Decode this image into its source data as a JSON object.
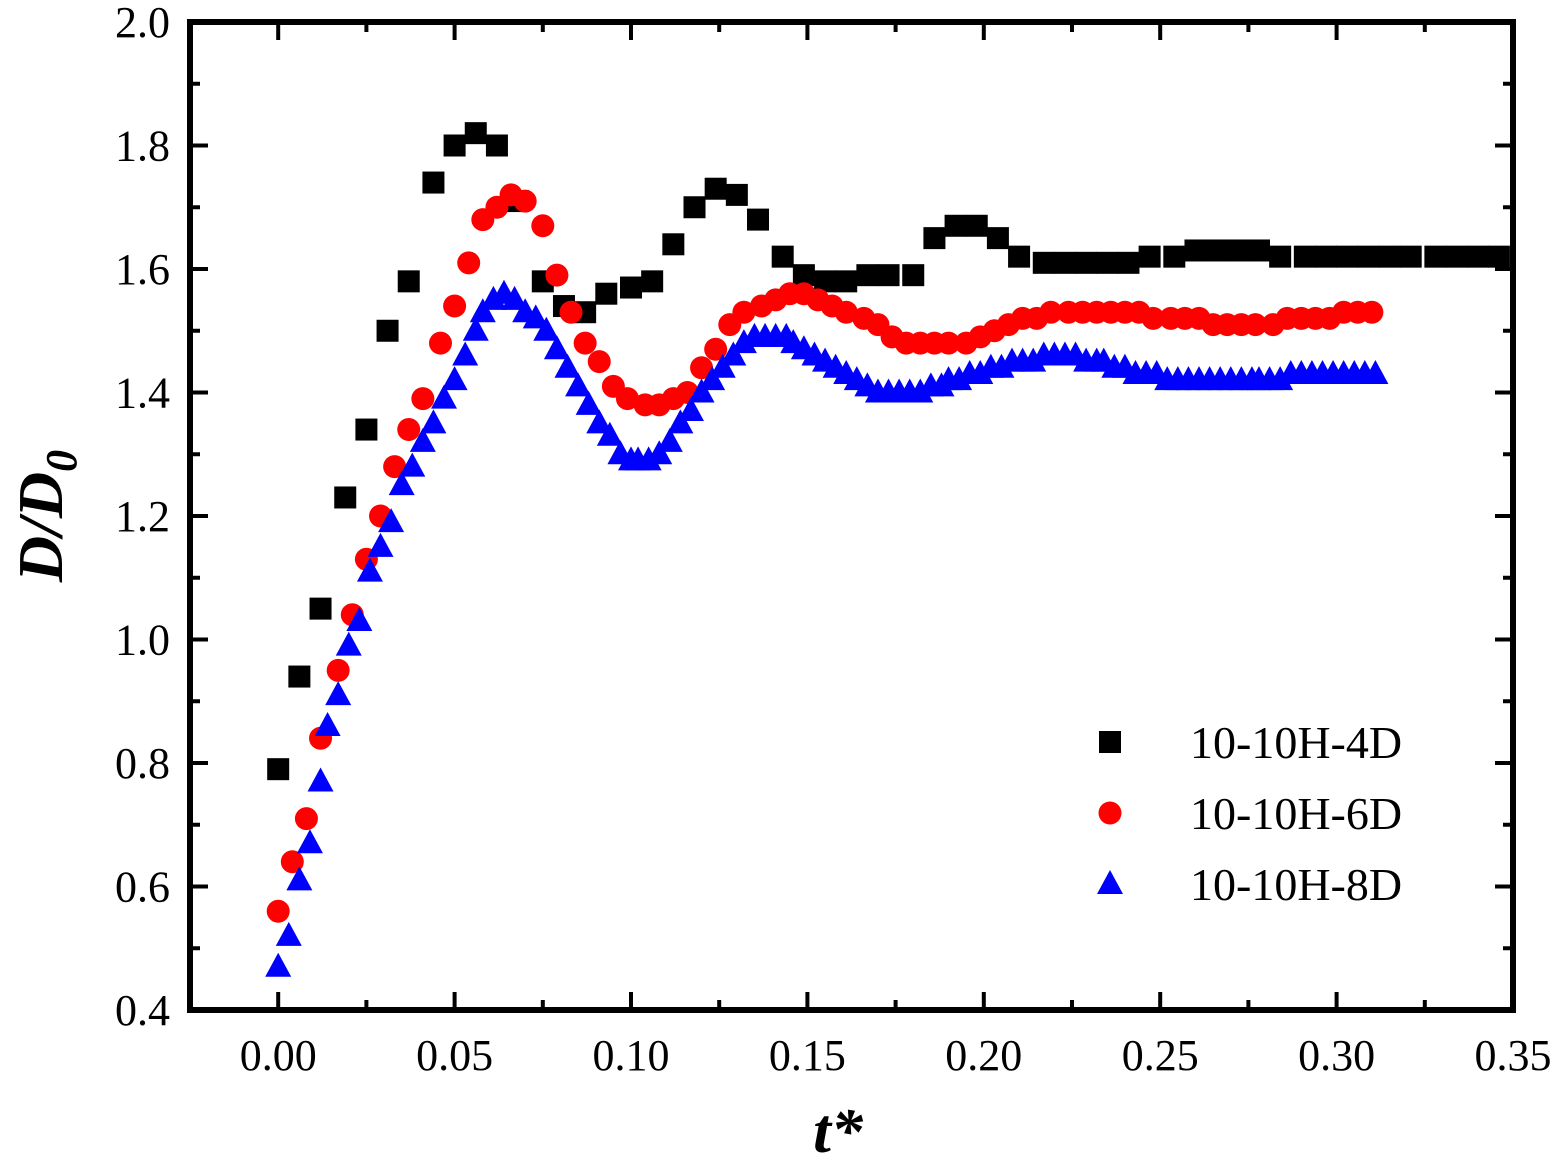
{
  "chart_data": {
    "type": "scatter",
    "xlabel": "t*",
    "ylabel_main": "D/D",
    "ylabel_sub": "0",
    "xlim": [
      -0.025,
      0.35
    ],
    "ylim": [
      0.4,
      2.0
    ],
    "xticks": [
      "0.00",
      "0.05",
      "0.10",
      "0.15",
      "0.20",
      "0.25",
      "0.30",
      "0.35"
    ],
    "xtick_values": [
      0.0,
      0.05,
      0.1,
      0.15,
      0.2,
      0.25,
      0.3,
      0.35
    ],
    "yticks": [
      "0.4",
      "0.6",
      "0.8",
      "1.0",
      "1.2",
      "1.4",
      "1.6",
      "1.8",
      "2.0"
    ],
    "ytick_values": [
      0.4,
      0.6,
      0.8,
      1.0,
      1.2,
      1.4,
      1.6,
      1.8,
      2.0
    ],
    "grid": false,
    "legend_position": "bottom-right",
    "series": [
      {
        "name": "10-10H-4D",
        "marker": "square",
        "color": "#000000",
        "x": [
          0.0,
          0.006,
          0.012,
          0.019,
          0.025,
          0.031,
          0.037,
          0.044,
          0.05,
          0.056,
          0.062,
          0.068,
          0.075,
          0.081,
          0.087,
          0.093,
          0.1,
          0.106,
          0.112,
          0.118,
          0.124,
          0.13,
          0.136,
          0.143,
          0.149,
          0.155,
          0.161,
          0.167,
          0.173,
          0.18,
          0.186,
          0.192,
          0.198,
          0.204,
          0.21,
          0.217,
          0.223,
          0.229,
          0.235,
          0.241,
          0.247,
          0.254,
          0.26,
          0.266,
          0.272,
          0.278,
          0.284,
          0.291,
          0.297,
          0.303,
          0.309,
          0.315,
          0.321,
          0.328,
          0.334,
          0.34,
          0.346
        ],
        "y": [
          0.79,
          0.94,
          1.05,
          1.23,
          1.34,
          1.5,
          1.58,
          1.74,
          1.8,
          1.82,
          1.8,
          1.71,
          1.58,
          1.54,
          1.53,
          1.56,
          1.57,
          1.58,
          1.64,
          1.7,
          1.73,
          1.72,
          1.68,
          1.62,
          1.59,
          1.58,
          1.58,
          1.59,
          1.59,
          1.59,
          1.65,
          1.67,
          1.67,
          1.65,
          1.62,
          1.61,
          1.61,
          1.61,
          1.61,
          1.61,
          1.62,
          1.62,
          1.63,
          1.63,
          1.63,
          1.63,
          1.62,
          1.62,
          1.62,
          1.62,
          1.62,
          1.62,
          1.62,
          1.62,
          1.62,
          1.62,
          1.62
        ]
      },
      {
        "name": "10-10H-6D",
        "marker": "circle",
        "color": "#ff0000",
        "x": [
          0.0,
          0.004,
          0.008,
          0.012,
          0.017,
          0.021,
          0.025,
          0.029,
          0.033,
          0.037,
          0.041,
          0.046,
          0.05,
          0.054,
          0.058,
          0.062,
          0.066,
          0.07,
          0.075,
          0.079,
          0.083,
          0.087,
          0.091,
          0.095,
          0.099,
          0.104,
          0.108,
          0.112,
          0.116,
          0.12,
          0.124,
          0.128,
          0.132,
          0.137,
          0.141,
          0.145,
          0.149,
          0.153,
          0.157,
          0.161,
          0.166,
          0.17,
          0.174,
          0.178,
          0.182,
          0.186,
          0.19,
          0.195,
          0.199,
          0.203,
          0.207,
          0.211,
          0.215,
          0.219,
          0.224,
          0.228,
          0.232,
          0.236,
          0.24,
          0.244,
          0.248,
          0.253,
          0.257,
          0.261,
          0.265,
          0.269,
          0.273,
          0.277,
          0.282,
          0.286,
          0.29,
          0.294,
          0.298,
          0.302,
          0.306,
          0.31
        ],
        "y": [
          0.56,
          0.64,
          0.71,
          0.84,
          0.95,
          1.04,
          1.13,
          1.2,
          1.28,
          1.34,
          1.39,
          1.48,
          1.54,
          1.61,
          1.68,
          1.7,
          1.72,
          1.71,
          1.67,
          1.59,
          1.53,
          1.48,
          1.45,
          1.41,
          1.39,
          1.38,
          1.38,
          1.39,
          1.4,
          1.44,
          1.47,
          1.51,
          1.53,
          1.54,
          1.55,
          1.56,
          1.56,
          1.55,
          1.54,
          1.53,
          1.52,
          1.51,
          1.49,
          1.48,
          1.48,
          1.48,
          1.48,
          1.48,
          1.49,
          1.5,
          1.51,
          1.52,
          1.52,
          1.53,
          1.53,
          1.53,
          1.53,
          1.53,
          1.53,
          1.53,
          1.52,
          1.52,
          1.52,
          1.52,
          1.51,
          1.51,
          1.51,
          1.51,
          1.51,
          1.52,
          1.52,
          1.52,
          1.52,
          1.53,
          1.53,
          1.53
        ]
      },
      {
        "name": "10-10H-8D",
        "marker": "triangle",
        "color": "#0000ff",
        "x": [
          0.0,
          0.003,
          0.006,
          0.009,
          0.012,
          0.014,
          0.017,
          0.02,
          0.023,
          0.026,
          0.029,
          0.032,
          0.035,
          0.038,
          0.041,
          0.044,
          0.047,
          0.05,
          0.053,
          0.056,
          0.058,
          0.061,
          0.064,
          0.067,
          0.07,
          0.073,
          0.076,
          0.079,
          0.082,
          0.085,
          0.088,
          0.091,
          0.094,
          0.097,
          0.1,
          0.102,
          0.105,
          0.108,
          0.111,
          0.114,
          0.117,
          0.12,
          0.123,
          0.126,
          0.129,
          0.132,
          0.135,
          0.138,
          0.141,
          0.144,
          0.146,
          0.149,
          0.152,
          0.155,
          0.158,
          0.161,
          0.164,
          0.167,
          0.17,
          0.173,
          0.176,
          0.179,
          0.182,
          0.185,
          0.188,
          0.19,
          0.193,
          0.196,
          0.199,
          0.202,
          0.205,
          0.208,
          0.211,
          0.214,
          0.217,
          0.22,
          0.223,
          0.226,
          0.229,
          0.232,
          0.234,
          0.237,
          0.24,
          0.243,
          0.246,
          0.249,
          0.252,
          0.255,
          0.258,
          0.261,
          0.264,
          0.267,
          0.27,
          0.273,
          0.276,
          0.278,
          0.281,
          0.284,
          0.287,
          0.29,
          0.293,
          0.296,
          0.299,
          0.302,
          0.305,
          0.308,
          0.311
        ],
        "y": [
          0.47,
          0.52,
          0.61,
          0.67,
          0.77,
          0.86,
          0.91,
          0.99,
          1.03,
          1.11,
          1.15,
          1.19,
          1.25,
          1.28,
          1.32,
          1.35,
          1.39,
          1.42,
          1.46,
          1.5,
          1.53,
          1.55,
          1.56,
          1.55,
          1.53,
          1.52,
          1.5,
          1.47,
          1.44,
          1.41,
          1.38,
          1.35,
          1.33,
          1.3,
          1.29,
          1.29,
          1.29,
          1.3,
          1.32,
          1.35,
          1.37,
          1.4,
          1.42,
          1.44,
          1.46,
          1.48,
          1.49,
          1.49,
          1.49,
          1.49,
          1.48,
          1.47,
          1.46,
          1.45,
          1.44,
          1.43,
          1.42,
          1.41,
          1.4,
          1.4,
          1.4,
          1.4,
          1.4,
          1.41,
          1.41,
          1.42,
          1.42,
          1.43,
          1.43,
          1.44,
          1.44,
          1.45,
          1.45,
          1.45,
          1.46,
          1.46,
          1.46,
          1.46,
          1.45,
          1.45,
          1.45,
          1.44,
          1.44,
          1.43,
          1.43,
          1.43,
          1.42,
          1.42,
          1.42,
          1.42,
          1.42,
          1.42,
          1.42,
          1.42,
          1.42,
          1.42,
          1.42,
          1.42,
          1.43,
          1.43,
          1.43,
          1.43,
          1.43,
          1.43,
          1.43,
          1.43,
          1.43
        ]
      }
    ]
  }
}
